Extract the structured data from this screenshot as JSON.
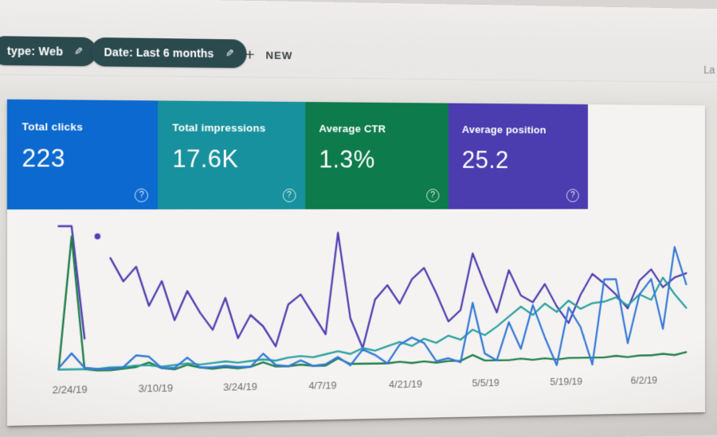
{
  "toolbar": {
    "filter_chips": [
      {
        "label": "type: Web",
        "icon": "pencil-icon"
      },
      {
        "label": "Date: Last 6 months",
        "icon": "pencil-icon"
      }
    ],
    "new_button": {
      "label": "NEW",
      "icon": "plus-icon"
    },
    "right_partial_text": "La"
  },
  "metric_cards": [
    {
      "label": "Total clicks",
      "value": "223",
      "color": "#0c69cf"
    },
    {
      "label": "Total impressions",
      "value": "17.6K",
      "color": "#17919d"
    },
    {
      "label": "Average CTR",
      "value": "1.3%",
      "color": "#0d7b4c"
    },
    {
      "label": "Average position",
      "value": "25.2",
      "color": "#4b3caf"
    }
  ],
  "help_icon": "?",
  "chart_data": {
    "type": "line",
    "x_tick_labels": [
      "2/24/19",
      "3/10/19",
      "3/24/19",
      "4/7/19",
      "4/21/19",
      "5/5/19",
      "5/19/19",
      "6/2/19"
    ],
    "x_tick_interval_days": 14,
    "y_axis": "unlabeled; values are percent of chart height (each metric normalized to its own scale)",
    "ylim": [
      0,
      100
    ],
    "grid": false,
    "legend": "none (series colors match metric cards)",
    "series": [
      {
        "name": "Total clicks",
        "color": "#3579d8",
        "values": [
          3,
          13,
          3,
          2,
          2,
          3,
          11,
          10,
          2,
          2,
          9,
          2,
          2,
          3,
          2,
          2,
          11,
          3,
          2,
          6,
          2,
          3,
          8,
          2,
          13,
          9,
          3,
          16,
          21,
          17,
          4,
          6,
          3,
          45,
          9,
          4,
          31,
          12,
          43,
          20,
          0,
          41,
          27,
          0,
          61,
          61,
          15,
          50,
          61,
          25,
          84,
          57
        ]
      },
      {
        "name": "Total impressions",
        "color": "#2ba1a0",
        "values": [
          2,
          2,
          2,
          2,
          3,
          3,
          4,
          4,
          3,
          4,
          5,
          4,
          5,
          6,
          5,
          6,
          7,
          6,
          8,
          9,
          8,
          10,
          12,
          10,
          14,
          12,
          15,
          18,
          15,
          20,
          17,
          22,
          19,
          26,
          22,
          28,
          35,
          42,
          36,
          44,
          38,
          46,
          40,
          44,
          45,
          48,
          42,
          50,
          46,
          62,
          50,
          40
        ]
      },
      {
        "name": "Average CTR",
        "color": "#1f7e4a",
        "values": [
          2,
          93,
          2,
          1,
          1,
          2,
          3,
          6,
          2,
          1,
          4,
          2,
          1,
          2,
          1,
          2,
          5,
          2,
          2,
          3,
          2,
          2,
          7,
          3,
          3,
          3,
          3,
          4,
          3,
          4,
          3,
          4,
          4,
          8,
          4,
          4,
          4,
          5,
          4,
          5,
          4,
          5,
          5,
          5,
          5,
          6,
          5,
          6,
          6,
          7,
          6,
          8
        ]
      },
      {
        "name": "Average position",
        "color": "#5041b2",
        "isolated_points": [
          3
        ],
        "values": [
          100,
          100,
          23,
          93,
          78,
          62,
          72,
          45,
          62,
          35,
          55,
          40,
          28,
          50,
          22,
          38,
          30,
          16,
          45,
          52,
          38,
          24,
          95,
          35,
          14,
          48,
          58,
          45,
          62,
          70,
          52,
          32,
          40,
          80,
          58,
          38,
          68,
          50,
          45,
          58,
          42,
          30,
          50,
          65,
          58,
          50,
          40,
          60,
          68,
          55,
          62,
          65
        ]
      }
    ]
  }
}
